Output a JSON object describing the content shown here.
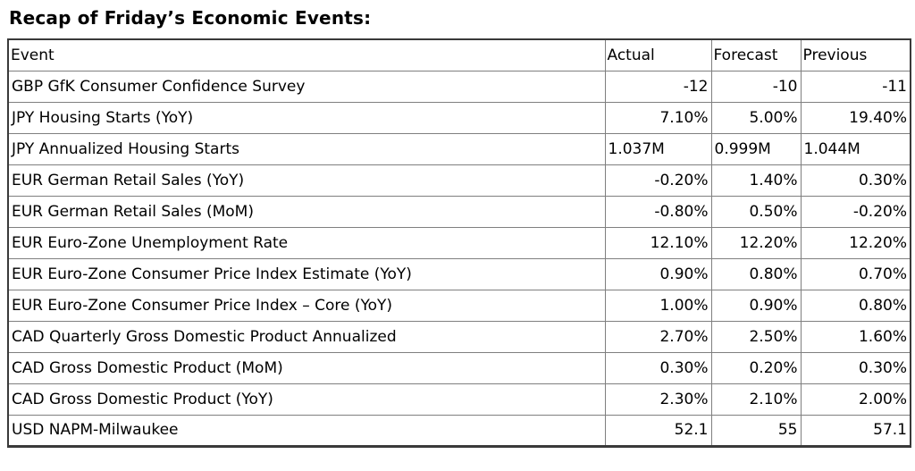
{
  "title": "Recap of Friday’s Economic Events:",
  "colors": {
    "text": "#000000",
    "background": "#ffffff",
    "grid_inner": "#7f7f7f",
    "frame_outer": "#3a3a3a"
  },
  "chart_data": {
    "type": "table",
    "title": "Recap of Friday’s Economic Events:",
    "columns": [
      "Event",
      "Actual",
      "Forecast",
      "Previous"
    ],
    "rows": [
      {
        "event": "GBP GfK Consumer Confidence Survey",
        "actual": "-12",
        "forecast": "-10",
        "previous": "-11",
        "align": "right"
      },
      {
        "event": "JPY Housing Starts (YoY)",
        "actual": "7.10%",
        "forecast": "5.00%",
        "previous": "19.40%",
        "align": "right"
      },
      {
        "event": "JPY Annualized Housing Starts",
        "actual": "1.037M",
        "forecast": "0.999M",
        "previous": "1.044M",
        "align": "left"
      },
      {
        "event": "EUR German Retail Sales (YoY)",
        "actual": "-0.20%",
        "forecast": "1.40%",
        "previous": "0.30%",
        "align": "right"
      },
      {
        "event": "EUR German Retail Sales (MoM)",
        "actual": "-0.80%",
        "forecast": "0.50%",
        "previous": "-0.20%",
        "align": "right"
      },
      {
        "event": "EUR Euro-Zone Unemployment Rate",
        "actual": "12.10%",
        "forecast": "12.20%",
        "previous": "12.20%",
        "align": "right"
      },
      {
        "event": "EUR Euro-Zone Consumer Price Index Estimate (YoY)",
        "actual": "0.90%",
        "forecast": "0.80%",
        "previous": "0.70%",
        "align": "right"
      },
      {
        "event": "EUR Euro-Zone Consumer Price Index – Core (YoY)",
        "actual": "1.00%",
        "forecast": "0.90%",
        "previous": "0.80%",
        "align": "right"
      },
      {
        "event": "CAD Quarterly Gross Domestic Product Annualized",
        "actual": "2.70%",
        "forecast": "2.50%",
        "previous": "1.60%",
        "align": "right"
      },
      {
        "event": "CAD Gross Domestic Product (MoM)",
        "actual": "0.30%",
        "forecast": "0.20%",
        "previous": "0.30%",
        "align": "right"
      },
      {
        "event": "CAD Gross Domestic Product (YoY)",
        "actual": "2.30%",
        "forecast": "2.10%",
        "previous": "2.00%",
        "align": "right"
      },
      {
        "event": "USD NAPM-Milwaukee",
        "actual": "52.1",
        "forecast": "55",
        "previous": "57.1",
        "align": "right"
      }
    ]
  }
}
